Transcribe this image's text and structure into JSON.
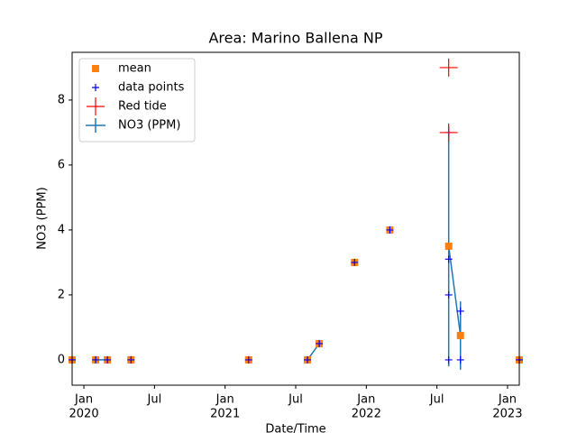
{
  "chart_data": {
    "type": "line",
    "title": "Area: Marino Ballena NP",
    "xlabel": "Date/Time",
    "ylabel": "NO3 (PPM)",
    "xlim": [
      "2019-12",
      "2023-02"
    ],
    "ylim": [
      -0.78,
      9.47
    ],
    "xticks": [
      {
        "value": "2020-01",
        "label": "Jan"
      },
      {
        "value": "2020-07",
        "label": "Jul"
      },
      {
        "value": "2021-01",
        "label": "Jan"
      },
      {
        "value": "2021-07",
        "label": "Jul"
      },
      {
        "value": "2022-01",
        "label": "Jan"
      },
      {
        "value": "2022-07",
        "label": "Jul"
      },
      {
        "value": "2023-01",
        "label": "Jan"
      }
    ],
    "xtick_years": [
      {
        "value": "2020-01",
        "label": "2020"
      },
      {
        "value": "2021-01",
        "label": "2021"
      },
      {
        "value": "2022-01",
        "label": "2022"
      },
      {
        "value": "2023-01",
        "label": "2023"
      }
    ],
    "yticks": [
      0,
      2,
      4,
      6,
      8
    ],
    "legend": "upper left",
    "series": [
      {
        "name": "NO3 (PPM)",
        "color": "#1f77b4",
        "marker": "line",
        "x": [
          "2019-12",
          "2020-02",
          "2020-03",
          "2020-05",
          "2021-03",
          "2021-08",
          "2021-09",
          "2021-12",
          "2022-03",
          "2022-08",
          "2022-09",
          "2023-02"
        ],
        "values": [
          null,
          0,
          0,
          null,
          null,
          0,
          0.5,
          null,
          null,
          3.5,
          0.75,
          null
        ],
        "errors": [
          null,
          null,
          null,
          null,
          null,
          null,
          null,
          null,
          null,
          3.7,
          1.05,
          null
        ]
      },
      {
        "name": "mean",
        "color": "#ff7f0e",
        "marker": "square",
        "x": [
          "2019-12",
          "2020-02",
          "2020-03",
          "2020-05",
          "2021-03",
          "2021-08",
          "2021-09",
          "2021-12",
          "2022-03",
          "2022-08",
          "2022-09",
          "2023-02"
        ],
        "values": [
          0,
          0,
          0,
          0,
          0,
          0,
          0.5,
          3,
          4,
          3.5,
          0.75,
          0
        ]
      },
      {
        "name": "data points",
        "color": "#0000ff",
        "marker": "plus",
        "x": [
          "2019-12",
          "2020-02",
          "2020-03",
          "2020-05",
          "2021-03",
          "2021-08",
          "2021-09",
          "2021-12",
          "2022-03",
          "2022-08",
          "2022-08",
          "2022-08",
          "2022-08",
          "2022-09",
          "2022-09",
          "2023-02"
        ],
        "values": [
          0,
          0,
          0,
          0,
          0,
          0,
          0.5,
          3,
          4,
          0,
          2,
          3.1,
          7,
          0,
          1.5,
          0
        ]
      },
      {
        "name": "Red tide",
        "color": "#ff0000",
        "marker": "plus-large",
        "x": [
          "2022-08",
          "2022-08"
        ],
        "values": [
          9,
          7
        ]
      }
    ]
  }
}
